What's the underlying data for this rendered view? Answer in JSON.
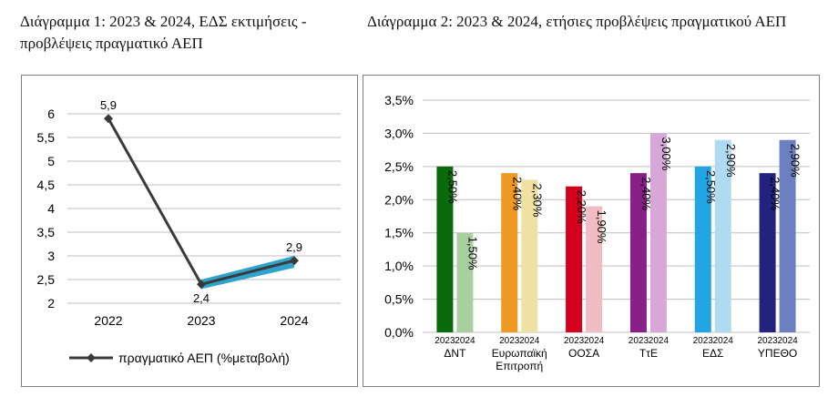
{
  "captions": {
    "chart1": "Διάγραμμα 1: 2023 & 2024, ΕΔΣ εκτιμήσεις - προβλέψεις πραγματικό ΑΕΠ",
    "chart2": "Διάγραμμα 2: 2023 & 2024, ετήσιες προβλέψεις πραγματικού ΑΕΠ"
  },
  "chart_data": [
    {
      "type": "line",
      "title": "",
      "x": [
        "2022",
        "2023",
        "2024"
      ],
      "series": [
        {
          "name": "πραγματικό ΑΕΠ (%μεταβολή)",
          "values": [
            5.9,
            2.4,
            2.9
          ],
          "labels": [
            "5,9",
            "2,4",
            "2,9"
          ]
        }
      ],
      "band": {
        "x": [
          "2023",
          "2024"
        ],
        "low": [
          2.3,
          2.75
        ],
        "high": [
          2.5,
          3.0
        ]
      },
      "ylim": [
        2,
        6
      ],
      "yticks": [
        "2",
        "2,5",
        "3",
        "3,5",
        "4",
        "4,5",
        "5",
        "5,5",
        "6"
      ],
      "grid": true,
      "legend": "bottom",
      "colors": {
        "line": "#3a3a3a",
        "band": "#2fa3cc"
      }
    },
    {
      "type": "bar",
      "title": "",
      "categories": [
        "ΔΝΤ",
        "Ευρωπαϊκή Επιτροπή",
        "ΟΟΣΑ",
        "ΤτΕ",
        "ΕΔΣ",
        "ΥΠΕΘΟ"
      ],
      "category_lines": [
        [
          "ΔΝΤ"
        ],
        [
          "Ευρωπαϊκή",
          "Επιτροπή"
        ],
        [
          "ΟΟΣΑ"
        ],
        [
          "ΤτΕ"
        ],
        [
          "ΕΔΣ"
        ],
        [
          "ΥΠΕΘΟ"
        ]
      ],
      "sub_labels": [
        "2023",
        "2024"
      ],
      "series": [
        {
          "values": [
            2.5,
            2.4,
            2.2,
            2.4,
            2.5,
            2.4
          ],
          "labels": [
            "2,50%",
            "2,40%",
            "2,20%",
            "2,40%",
            "2,50%",
            "2,40%"
          ]
        },
        {
          "values": [
            1.5,
            2.3,
            1.9,
            3.0,
            2.9,
            2.9
          ],
          "labels": [
            "1,50%",
            "2,30%",
            "1,90%",
            "3,00%",
            "2,90%",
            "2,90%"
          ]
        }
      ],
      "colors": {
        "2023": [
          "#0a6b0a",
          "#ee9a22",
          "#d4001c",
          "#8a1f8a",
          "#22a5e3",
          "#23237f"
        ],
        "2024": [
          "#a8cf9e",
          "#efe1a2",
          "#f2bcc4",
          "#d7a8d7",
          "#aedbf2",
          "#6b7fc1"
        ]
      },
      "ylim": [
        0,
        3.5
      ],
      "yticks": [
        "0,0%",
        "0,5%",
        "1,0%",
        "1,5%",
        "2,0%",
        "2,5%",
        "3,0%",
        "3,5%"
      ],
      "grid": true,
      "legend": "none"
    }
  ]
}
